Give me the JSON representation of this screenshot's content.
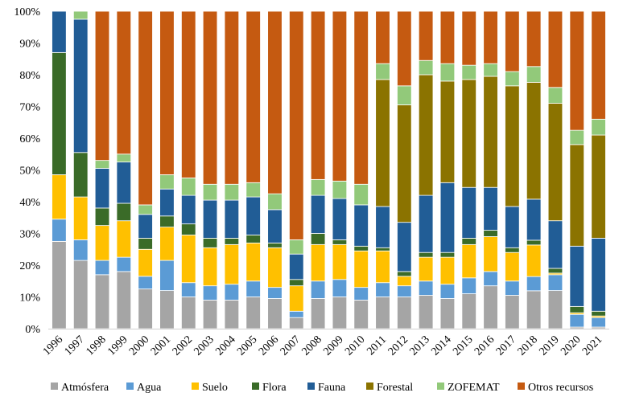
{
  "chart_data": {
    "type": "bar",
    "stacked": "percent",
    "title": "",
    "xlabel": "",
    "ylabel": "",
    "ylim": [
      0,
      100
    ],
    "yticks": [
      "0%",
      "10%",
      "20%",
      "30%",
      "40%",
      "50%",
      "60%",
      "70%",
      "80%",
      "90%",
      "100%"
    ],
    "grid": false,
    "legend_position": "bottom",
    "categories": [
      "1996",
      "1997",
      "1998",
      "1999",
      "2000",
      "2001",
      "2002",
      "2003",
      "2004",
      "2005",
      "2006",
      "2007",
      "2008",
      "2009",
      "2010",
      "2011",
      "2012",
      "2013",
      "2014",
      "2015",
      "2016",
      "2017",
      "2018",
      "2019",
      "2020",
      "2021"
    ],
    "series": [
      {
        "name": "Atmósfera",
        "color": "#A5A5A5",
        "values": [
          27.5,
          21.5,
          17,
          18,
          12.5,
          12,
          10,
          9,
          9,
          10,
          9.5,
          3.5,
          9.5,
          10,
          9,
          10,
          10,
          10.5,
          9.5,
          11,
          13.5,
          10.5,
          12,
          12,
          0.5,
          0.5
        ]
      },
      {
        "name": "Agua",
        "color": "#5B9BD5",
        "values": [
          7,
          6.5,
          4.5,
          4.5,
          4,
          9.5,
          4.5,
          4.5,
          5,
          5,
          3.5,
          2,
          5.5,
          5.5,
          4,
          4.5,
          3.5,
          4.5,
          4.5,
          5,
          4.5,
          4.5,
          4.5,
          5,
          4,
          3
        ]
      },
      {
        "name": "Suelo",
        "color": "#FFC000",
        "values": [
          14,
          13.5,
          11,
          11.5,
          8.5,
          10.5,
          15,
          12,
          12.5,
          12,
          12.5,
          8,
          11.5,
          11,
          11.5,
          10,
          3,
          7.5,
          8.5,
          10.5,
          11,
          9,
          10,
          0.5,
          0.5,
          0.5
        ]
      },
      {
        "name": "Flora",
        "color": "#3A6B28",
        "values": [
          38.5,
          14,
          5.5,
          5.5,
          3.5,
          3.5,
          3.5,
          3,
          2,
          2.5,
          1.5,
          2,
          3.5,
          1.5,
          1.5,
          1,
          1.5,
          1.5,
          1.5,
          2,
          2,
          1.5,
          1.5,
          1.5,
          2,
          1.5
        ]
      },
      {
        "name": "Fauna",
        "color": "#215D96",
        "values": [
          13,
          42,
          12.5,
          13,
          7.5,
          8.5,
          9,
          12,
          12,
          12,
          10.5,
          8,
          12,
          13,
          13,
          13,
          15.5,
          18,
          22,
          16,
          13.5,
          13,
          13,
          15,
          19,
          23
        ]
      },
      {
        "name": "Forestal",
        "color": "#8B7300",
        "values": [
          0,
          0,
          0,
          0,
          0,
          0,
          0,
          0,
          0,
          0,
          0,
          0,
          0,
          0,
          0,
          40,
          37,
          38,
          32,
          34,
          35,
          38,
          37,
          37,
          32,
          32.5
        ]
      },
      {
        "name": "ZOFEMAT",
        "color": "#92C97A",
        "values": [
          0,
          2.5,
          2.5,
          2.5,
          3,
          4.5,
          5.5,
          5,
          5,
          4.5,
          5,
          4.5,
          5,
          5.5,
          6.5,
          5,
          6,
          4.5,
          5.5,
          4.5,
          4,
          4.5,
          5,
          5,
          4.5,
          5
        ]
      },
      {
        "name": "Otros recursos",
        "color": "#C55A11",
        "values": [
          0,
          0,
          47,
          45,
          61,
          51.5,
          52.5,
          54.5,
          54.5,
          54,
          57.5,
          72,
          53,
          53.5,
          54.5,
          16.5,
          23.5,
          15.5,
          16.5,
          17,
          16.5,
          19,
          17.5,
          24,
          37.5,
          34
        ]
      }
    ]
  }
}
